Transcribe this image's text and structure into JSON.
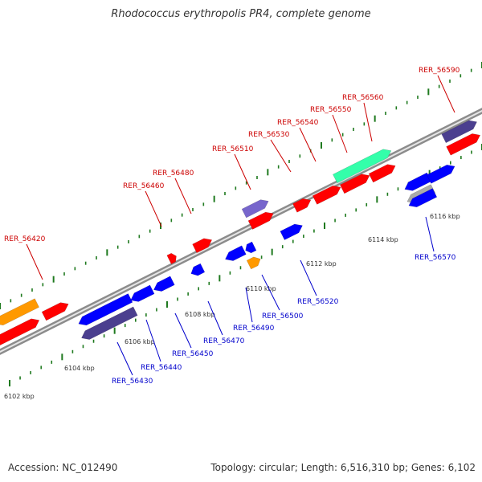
{
  "title": "Rhodococcus erythropolis PR4, complete genome",
  "footer": {
    "accession": "Accession: NC_012490",
    "summary": "Topology: circular; Length: 6,516,310 bp; Genes: 6,102"
  },
  "colors": {
    "backbone": "#8c8c8c",
    "tick_mark": "#1f7a1f",
    "forward_label": "#cc0000",
    "reverse_label": "#0000cc",
    "scale_label": "#333333",
    "cds_forward": "#ff0000",
    "cds_reverse": "#0000ff",
    "cds_other": "#4b3f8f",
    "cds_orange": "#ff9900",
    "cds_green": "#33ffaa",
    "cds_lavender": "#7766cc",
    "cds_grey": "#aaaaaa"
  },
  "scale_labels": [
    "6102 kbp",
    "6104 kbp",
    "6106 kbp",
    "6108 kbp",
    "6110 kbp",
    "6112 kbp",
    "6114 kbp",
    "6116 kbp"
  ],
  "forward_labels": [
    "RER_56420",
    "RER_56460",
    "RER_56480",
    "RER_56510",
    "RER_56530",
    "RER_56540",
    "RER_56550",
    "RER_56560",
    "RER_56590"
  ],
  "reverse_labels": [
    "RER_56430",
    "RER_56440",
    "RER_56450",
    "RER_56470",
    "RER_56490",
    "RER_56500",
    "RER_56520",
    "RER_56570"
  ]
}
